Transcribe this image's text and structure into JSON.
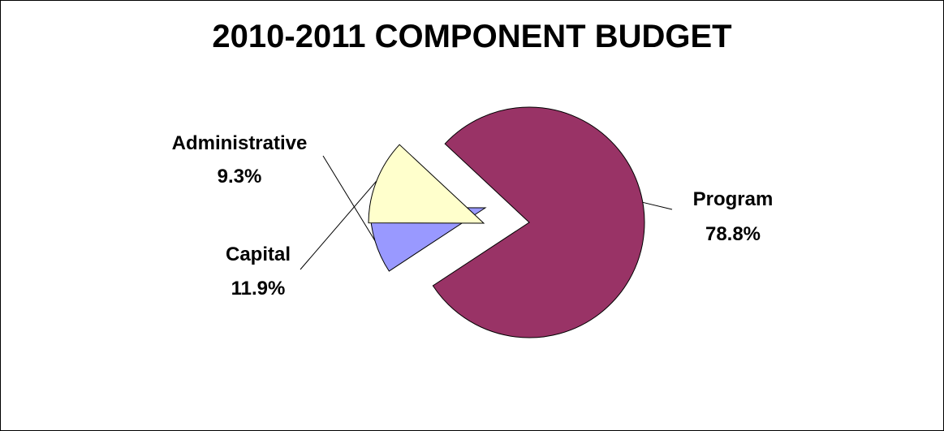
{
  "chart_data": {
    "type": "pie",
    "title": "2010-2011 COMPONENT BUDGET",
    "slices": [
      {
        "label": "Program",
        "value": 78.8,
        "value_label": "78.8%",
        "color": "#993366"
      },
      {
        "label": "Administrative",
        "value": 9.3,
        "value_label": "9.3%",
        "color": "#9999FF"
      },
      {
        "label": "Capital",
        "value": 11.9,
        "value_label": "11.9%",
        "color": "#FFFFCC"
      }
    ],
    "exploded": true,
    "legend": "none",
    "data_labels": "outside with leader lines"
  }
}
